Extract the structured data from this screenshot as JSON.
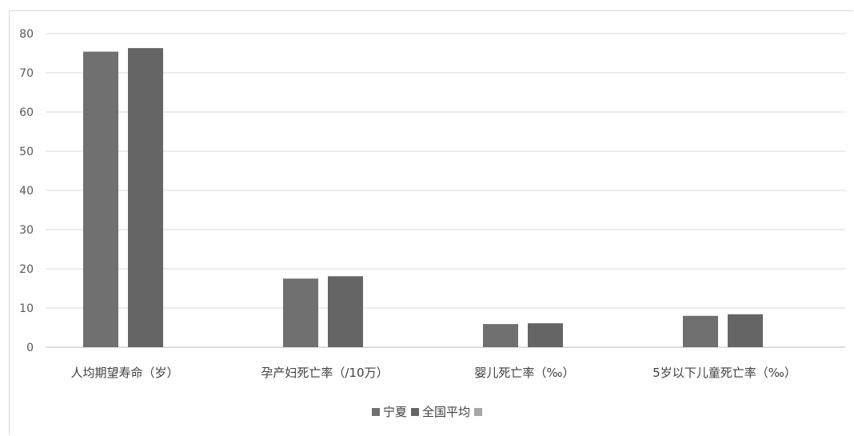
{
  "chart_data": {
    "type": "bar",
    "categories": [
      "人均期望寿命（岁）",
      "孕产妇死亡率（/10万）",
      "婴儿死亡率（‰）",
      "5岁以下儿童死亡率（‰）"
    ],
    "series": [
      {
        "name": "宁夏",
        "values": [
          75.4,
          17.5,
          5.9,
          8.0
        ],
        "color": "#707070"
      },
      {
        "name": "全国平均",
        "values": [
          76.3,
          18.1,
          6.1,
          8.4
        ],
        "color": "#656565"
      },
      {
        "name": "",
        "values": [
          null,
          null,
          null,
          null
        ],
        "color": "#a6a6a6"
      }
    ],
    "ylim": [
      0,
      80
    ],
    "yticks": [
      0,
      10,
      20,
      30,
      40,
      50,
      60,
      70,
      80
    ],
    "grid": true,
    "legend_position": "bottom"
  }
}
